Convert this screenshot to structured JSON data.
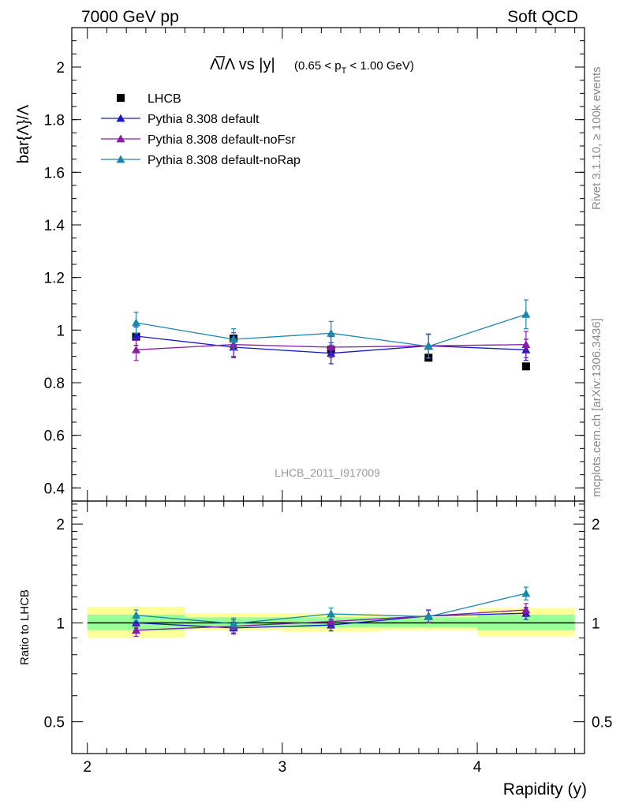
{
  "header": {
    "left": "7000 GeV pp",
    "right": "Soft QCD"
  },
  "side_labels": {
    "rivet": "Rivet 3.1.10, ≥ 100k events",
    "mcplots": "mcplots.cern.ch [arXiv:1306.3436]"
  },
  "watermark": "LHCB_2011_I917009",
  "chart_data": [
    {
      "type": "scatter",
      "title_main": "Λ̅/Λ vs |y|",
      "title_sub": "(0.65 < p_T < 1.00 GeV)",
      "xlabel": "Rapidity (y)",
      "ylabel": "bar{Λ}/Λ",
      "xlim": [
        1.92,
        4.55
      ],
      "ylim": [
        0.35,
        2.15
      ],
      "yticks": [
        0.4,
        0.6,
        0.8,
        1.0,
        1.2,
        1.4,
        1.6,
        1.8,
        2.0
      ],
      "yticklabels": [
        "0.4",
        "0.6",
        "0.8",
        "1",
        "1.2",
        "1.4",
        "1.6",
        "1.8",
        "2"
      ],
      "legend_position": "top-left",
      "series": [
        {
          "name": "LHCB",
          "color": "#000000",
          "marker": "square",
          "line": false,
          "x": [
            2.25,
            2.75,
            3.25,
            3.75,
            4.25
          ],
          "y": [
            0.975,
            0.968,
            0.925,
            0.895,
            0.862
          ],
          "err": [
            0.01,
            0.01,
            0.01,
            0.01,
            0.01
          ]
        },
        {
          "name": "Pythia 8.308 default",
          "color": "#1a1acc",
          "marker": "triangle",
          "line": true,
          "x": [
            2.25,
            2.75,
            3.25,
            3.75,
            4.25
          ],
          "y": [
            0.977,
            0.935,
            0.912,
            0.94,
            0.925
          ],
          "err": [
            0.035,
            0.04,
            0.04,
            0.045,
            0.04
          ]
        },
        {
          "name": "Pythia 8.308 default-noFsr",
          "color": "#8a1aa8",
          "marker": "triangle",
          "line": true,
          "x": [
            2.25,
            2.75,
            3.25,
            3.75,
            4.25
          ],
          "y": [
            0.925,
            0.945,
            0.935,
            0.94,
            0.945
          ],
          "err": [
            0.04,
            0.045,
            0.04,
            0.045,
            0.05
          ]
        },
        {
          "name": "Pythia 8.308 default-noRap",
          "color": "#1a88aa",
          "marker": "triangle",
          "line": true,
          "x": [
            2.25,
            2.75,
            3.25,
            3.75,
            4.25
          ],
          "y": [
            1.028,
            0.965,
            0.988,
            0.938,
            1.06
          ],
          "err": [
            0.04,
            0.04,
            0.045,
            0.045,
            0.055
          ]
        }
      ]
    },
    {
      "type": "scatter",
      "xlabel": "Rapidity (y)",
      "ylabel": "Ratio to LHCB",
      "xlim": [
        1.92,
        4.55
      ],
      "ylim": [
        0.4,
        2.35
      ],
      "ylog": true,
      "yticks": [
        0.5,
        1.0,
        2.0
      ],
      "yticklabels": [
        "0.5",
        "1",
        "2"
      ],
      "xticks": [
        2,
        3,
        4
      ],
      "xticklabels": [
        "2",
        "3",
        "4"
      ],
      "bands": {
        "x_edges": [
          2.0,
          2.5,
          3.0,
          3.5,
          4.0,
          4.5
        ],
        "yellow": [
          [
            0.9,
            1.12
          ],
          [
            0.95,
            1.07
          ],
          [
            0.94,
            1.07
          ],
          [
            0.95,
            1.06
          ],
          [
            0.91,
            1.11
          ]
        ],
        "green": [
          [
            0.95,
            1.06
          ],
          [
            0.97,
            1.04
          ],
          [
            0.97,
            1.04
          ],
          [
            0.97,
            1.04
          ],
          [
            0.95,
            1.06
          ]
        ],
        "yellow_color": "#ffff99",
        "green_color": "#99ff99"
      },
      "series": [
        {
          "name": "Pythia 8.308 default",
          "color": "#1a1acc",
          "x": [
            2.25,
            2.75,
            3.25,
            3.75,
            4.25
          ],
          "y": [
            1.0,
            0.965,
            0.985,
            1.05,
            1.07
          ],
          "err": [
            0.035,
            0.04,
            0.04,
            0.045,
            0.045
          ]
        },
        {
          "name": "Pythia 8.308 default-noFsr",
          "color": "#8a1aa8",
          "x": [
            2.25,
            2.75,
            3.25,
            3.75,
            4.25
          ],
          "y": [
            0.95,
            0.977,
            1.01,
            1.05,
            1.095
          ],
          "err": [
            0.04,
            0.045,
            0.04,
            0.045,
            0.05
          ]
        },
        {
          "name": "Pythia 8.308 default-noRap",
          "color": "#1a88aa",
          "x": [
            2.25,
            2.75,
            3.25,
            3.75,
            4.25
          ],
          "y": [
            1.055,
            0.995,
            1.065,
            1.045,
            1.23
          ],
          "err": [
            0.04,
            0.04,
            0.045,
            0.045,
            0.055
          ]
        }
      ]
    }
  ]
}
